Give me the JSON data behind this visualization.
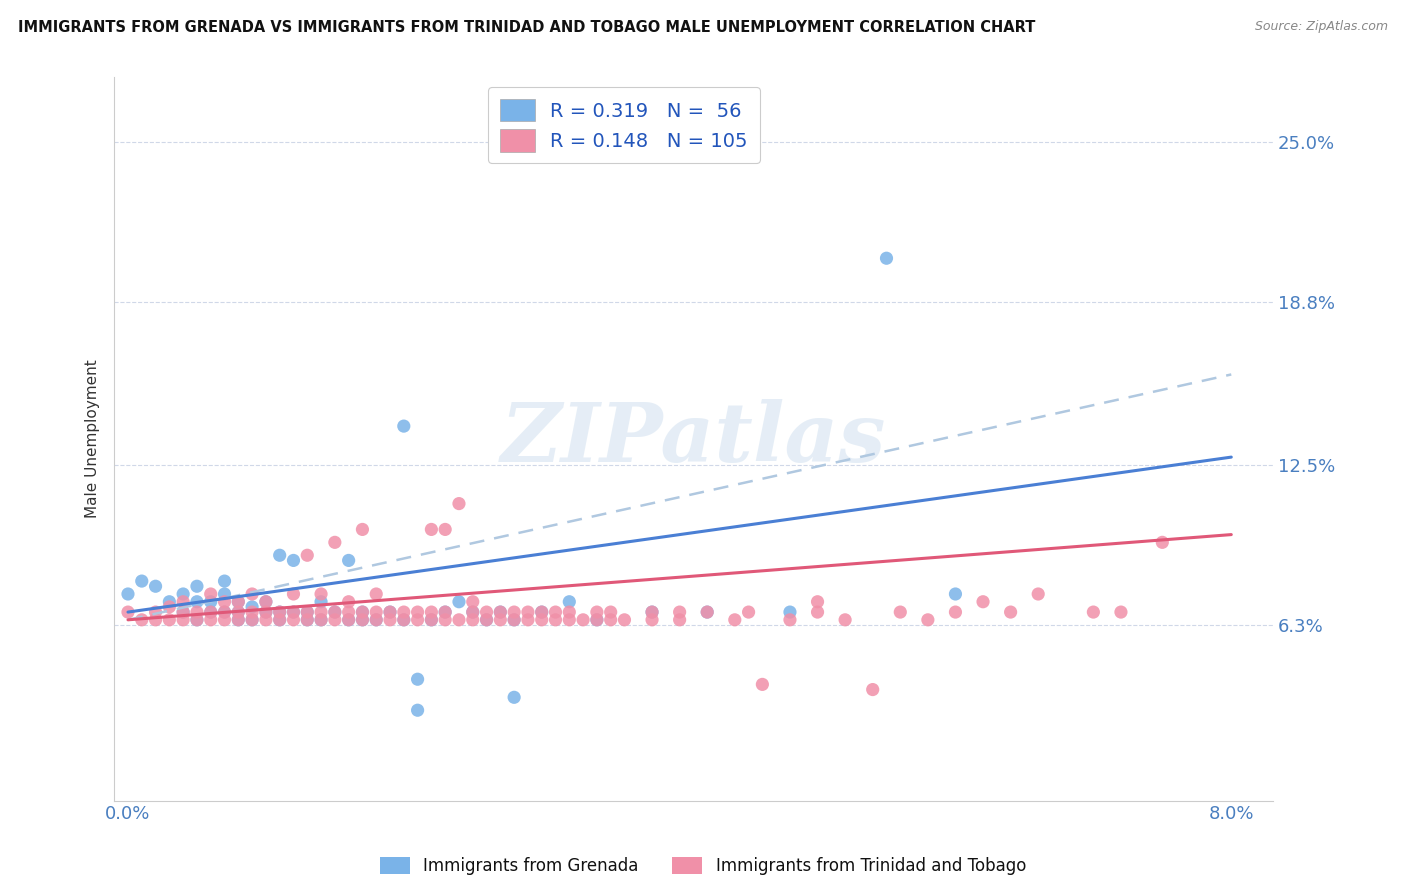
{
  "title": "IMMIGRANTS FROM GRENADA VS IMMIGRANTS FROM TRINIDAD AND TOBAGO MALE UNEMPLOYMENT CORRELATION CHART",
  "source": "Source: ZipAtlas.com",
  "ylabel": "Male Unemployment",
  "y_tick_labels": [
    "6.3%",
    "12.5%",
    "18.8%",
    "25.0%"
  ],
  "y_tick_values": [
    0.063,
    0.125,
    0.188,
    0.25
  ],
  "xlim": [
    -0.001,
    0.083
  ],
  "ylim": [
    -0.005,
    0.275
  ],
  "grenada_color": "#7ab3e8",
  "trinidad_color": "#f090a8",
  "trend_grenada_color": "#4a7fd4",
  "trend_trinidad_color": "#e05878",
  "trend_dashed_color": "#b0c8e0",
  "background_color": "#ffffff",
  "grid_color": "#d0d8e8",
  "tick_label_color": "#4a7fc0",
  "watermark": "ZIPatlas",
  "grenada_scatter": [
    [
      0.0,
      0.075
    ],
    [
      0.001,
      0.08
    ],
    [
      0.002,
      0.078
    ],
    [
      0.003,
      0.072
    ],
    [
      0.004,
      0.068
    ],
    [
      0.004,
      0.075
    ],
    [
      0.005,
      0.065
    ],
    [
      0.005,
      0.072
    ],
    [
      0.005,
      0.078
    ],
    [
      0.006,
      0.068
    ],
    [
      0.006,
      0.072
    ],
    [
      0.007,
      0.068
    ],
    [
      0.007,
      0.075
    ],
    [
      0.007,
      0.08
    ],
    [
      0.008,
      0.065
    ],
    [
      0.008,
      0.068
    ],
    [
      0.008,
      0.072
    ],
    [
      0.009,
      0.065
    ],
    [
      0.009,
      0.07
    ],
    [
      0.01,
      0.068
    ],
    [
      0.01,
      0.072
    ],
    [
      0.011,
      0.065
    ],
    [
      0.011,
      0.068
    ],
    [
      0.011,
      0.09
    ],
    [
      0.012,
      0.068
    ],
    [
      0.012,
      0.088
    ],
    [
      0.013,
      0.065
    ],
    [
      0.013,
      0.068
    ],
    [
      0.014,
      0.065
    ],
    [
      0.014,
      0.072
    ],
    [
      0.015,
      0.068
    ],
    [
      0.016,
      0.065
    ],
    [
      0.016,
      0.088
    ],
    [
      0.017,
      0.065
    ],
    [
      0.017,
      0.068
    ],
    [
      0.018,
      0.065
    ],
    [
      0.019,
      0.068
    ],
    [
      0.02,
      0.065
    ],
    [
      0.02,
      0.14
    ],
    [
      0.021,
      0.03
    ],
    [
      0.021,
      0.042
    ],
    [
      0.022,
      0.065
    ],
    [
      0.023,
      0.068
    ],
    [
      0.024,
      0.072
    ],
    [
      0.025,
      0.068
    ],
    [
      0.026,
      0.065
    ],
    [
      0.027,
      0.068
    ],
    [
      0.028,
      0.065
    ],
    [
      0.028,
      0.035
    ],
    [
      0.03,
      0.068
    ],
    [
      0.032,
      0.072
    ],
    [
      0.034,
      0.065
    ],
    [
      0.038,
      0.068
    ],
    [
      0.042,
      0.068
    ],
    [
      0.048,
      0.068
    ],
    [
      0.055,
      0.205
    ],
    [
      0.06,
      0.075
    ]
  ],
  "trinidad_scatter": [
    [
      0.0,
      0.068
    ],
    [
      0.001,
      0.065
    ],
    [
      0.002,
      0.065
    ],
    [
      0.002,
      0.068
    ],
    [
      0.003,
      0.065
    ],
    [
      0.003,
      0.07
    ],
    [
      0.004,
      0.065
    ],
    [
      0.004,
      0.068
    ],
    [
      0.004,
      0.072
    ],
    [
      0.005,
      0.065
    ],
    [
      0.005,
      0.068
    ],
    [
      0.006,
      0.065
    ],
    [
      0.006,
      0.068
    ],
    [
      0.006,
      0.075
    ],
    [
      0.007,
      0.065
    ],
    [
      0.007,
      0.068
    ],
    [
      0.007,
      0.072
    ],
    [
      0.008,
      0.065
    ],
    [
      0.008,
      0.068
    ],
    [
      0.008,
      0.072
    ],
    [
      0.009,
      0.065
    ],
    [
      0.009,
      0.068
    ],
    [
      0.009,
      0.075
    ],
    [
      0.01,
      0.065
    ],
    [
      0.01,
      0.068
    ],
    [
      0.01,
      0.072
    ],
    [
      0.011,
      0.065
    ],
    [
      0.011,
      0.068
    ],
    [
      0.012,
      0.065
    ],
    [
      0.012,
      0.068
    ],
    [
      0.012,
      0.075
    ],
    [
      0.013,
      0.065
    ],
    [
      0.013,
      0.068
    ],
    [
      0.013,
      0.09
    ],
    [
      0.014,
      0.065
    ],
    [
      0.014,
      0.068
    ],
    [
      0.014,
      0.075
    ],
    [
      0.015,
      0.065
    ],
    [
      0.015,
      0.068
    ],
    [
      0.015,
      0.095
    ],
    [
      0.016,
      0.065
    ],
    [
      0.016,
      0.068
    ],
    [
      0.016,
      0.072
    ],
    [
      0.017,
      0.065
    ],
    [
      0.017,
      0.068
    ],
    [
      0.017,
      0.1
    ],
    [
      0.018,
      0.065
    ],
    [
      0.018,
      0.068
    ],
    [
      0.018,
      0.075
    ],
    [
      0.019,
      0.065
    ],
    [
      0.019,
      0.068
    ],
    [
      0.02,
      0.065
    ],
    [
      0.02,
      0.068
    ],
    [
      0.021,
      0.065
    ],
    [
      0.021,
      0.068
    ],
    [
      0.022,
      0.065
    ],
    [
      0.022,
      0.068
    ],
    [
      0.022,
      0.1
    ],
    [
      0.023,
      0.065
    ],
    [
      0.023,
      0.068
    ],
    [
      0.023,
      0.1
    ],
    [
      0.024,
      0.065
    ],
    [
      0.024,
      0.11
    ],
    [
      0.025,
      0.065
    ],
    [
      0.025,
      0.068
    ],
    [
      0.025,
      0.072
    ],
    [
      0.026,
      0.065
    ],
    [
      0.026,
      0.068
    ],
    [
      0.027,
      0.065
    ],
    [
      0.027,
      0.068
    ],
    [
      0.028,
      0.065
    ],
    [
      0.028,
      0.068
    ],
    [
      0.029,
      0.065
    ],
    [
      0.029,
      0.068
    ],
    [
      0.03,
      0.065
    ],
    [
      0.03,
      0.068
    ],
    [
      0.031,
      0.065
    ],
    [
      0.031,
      0.068
    ],
    [
      0.032,
      0.065
    ],
    [
      0.032,
      0.068
    ],
    [
      0.033,
      0.065
    ],
    [
      0.034,
      0.065
    ],
    [
      0.034,
      0.068
    ],
    [
      0.035,
      0.065
    ],
    [
      0.035,
      0.068
    ],
    [
      0.036,
      0.065
    ],
    [
      0.038,
      0.065
    ],
    [
      0.038,
      0.068
    ],
    [
      0.04,
      0.065
    ],
    [
      0.04,
      0.068
    ],
    [
      0.042,
      0.068
    ],
    [
      0.044,
      0.065
    ],
    [
      0.045,
      0.068
    ],
    [
      0.046,
      0.04
    ],
    [
      0.048,
      0.065
    ],
    [
      0.05,
      0.068
    ],
    [
      0.05,
      0.072
    ],
    [
      0.052,
      0.065
    ],
    [
      0.054,
      0.038
    ],
    [
      0.056,
      0.068
    ],
    [
      0.058,
      0.065
    ],
    [
      0.06,
      0.068
    ],
    [
      0.062,
      0.072
    ],
    [
      0.064,
      0.068
    ],
    [
      0.066,
      0.075
    ],
    [
      0.07,
      0.068
    ],
    [
      0.072,
      0.068
    ],
    [
      0.075,
      0.095
    ]
  ],
  "trend_grenada_y0": 0.068,
  "trend_grenada_y1": 0.128,
  "trend_trinidad_y0": 0.065,
  "trend_trinidad_y1": 0.098,
  "trend_dashed_y0": 0.065,
  "trend_dashed_y1": 0.16
}
